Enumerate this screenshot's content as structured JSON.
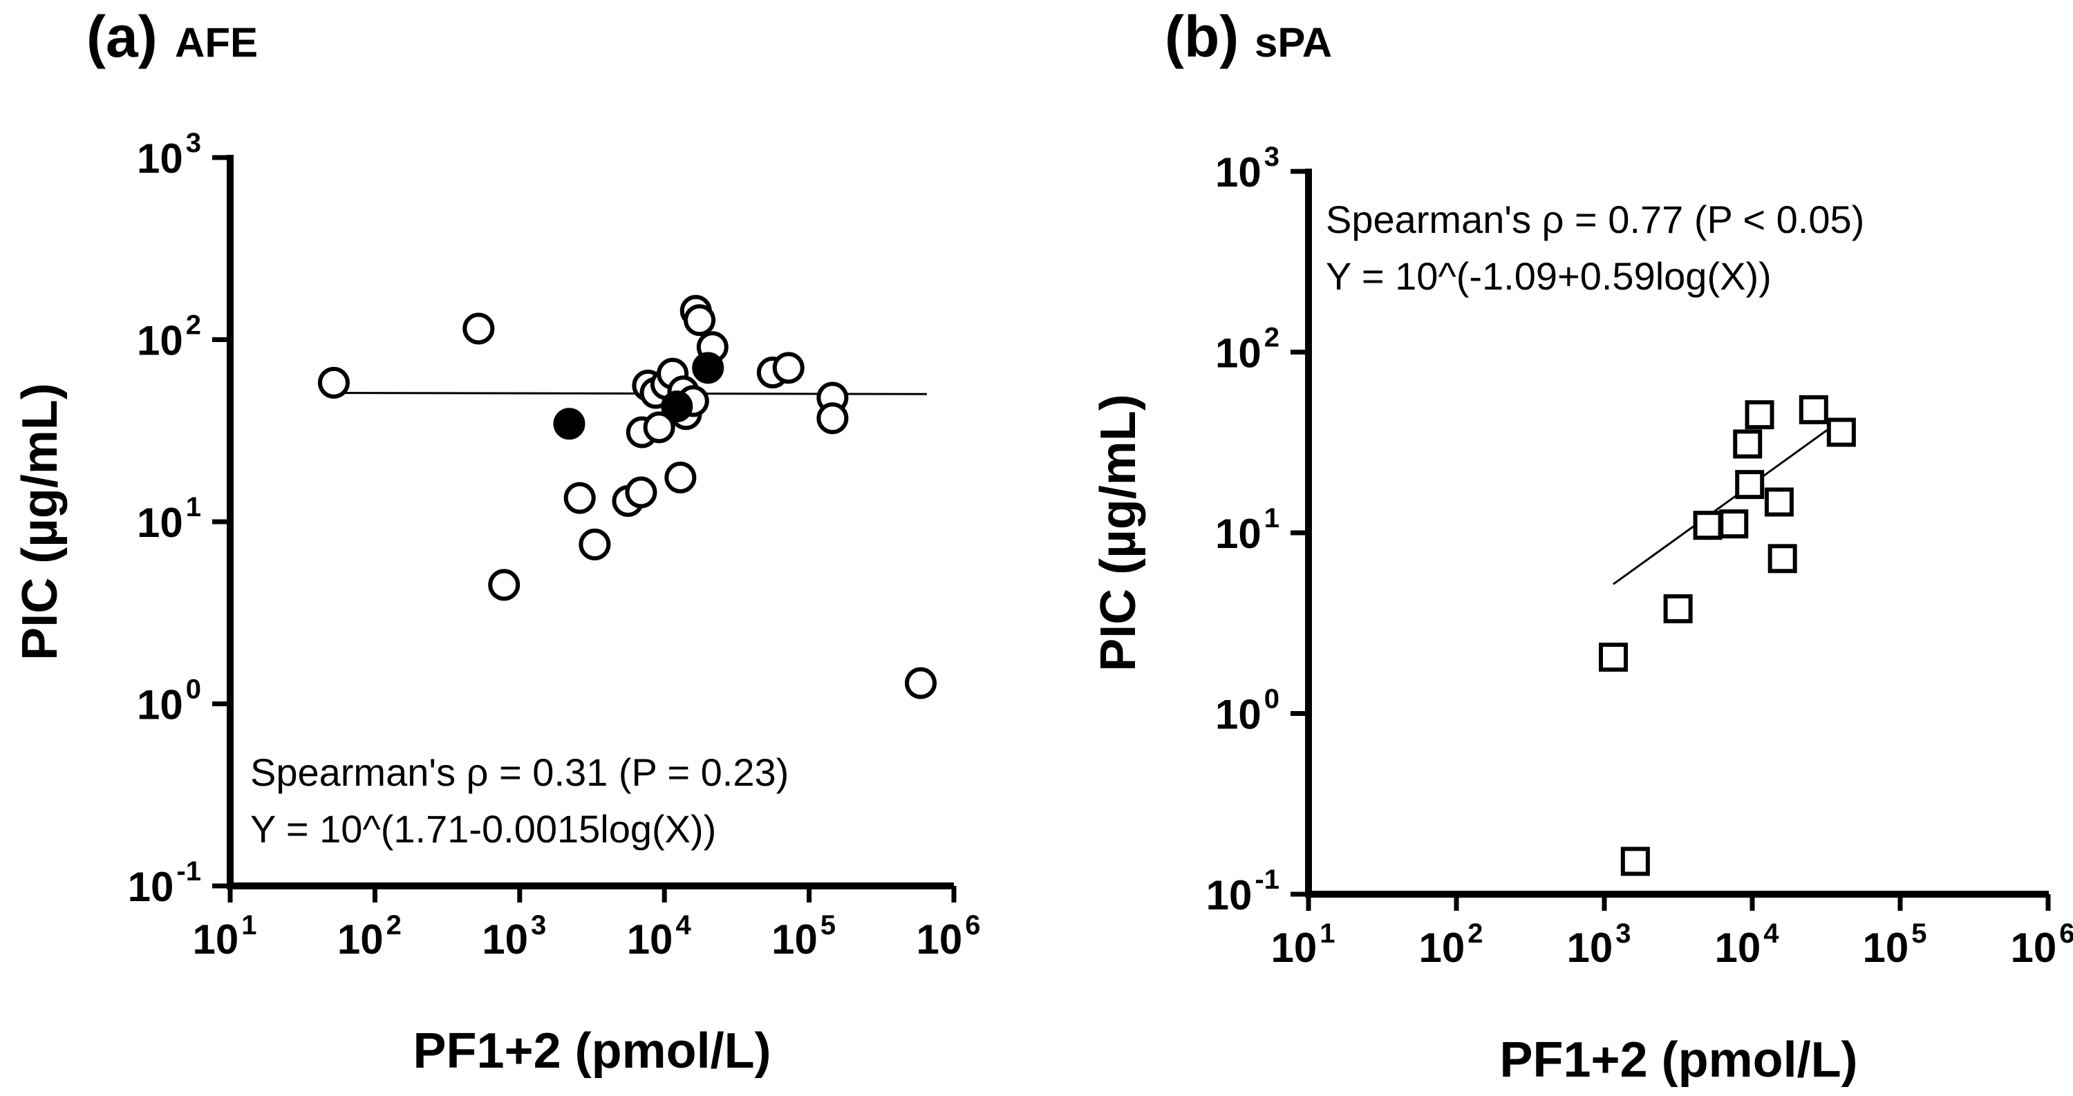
{
  "chart_data": [
    {
      "id": "a",
      "type": "scatter",
      "panel_letter": "(a)",
      "panel_name": "AFE",
      "xlabel": "PF1+2 (pmol/L)",
      "ylabel": "PIC (µg/mL)",
      "xscale": "log",
      "yscale": "log",
      "xlim": [
        10,
        1000000
      ],
      "ylim": [
        0.1,
        1000
      ],
      "x_ticks": [
        {
          "base": "10",
          "exp": "1",
          "value": 10
        },
        {
          "base": "10",
          "exp": "2",
          "value": 100
        },
        {
          "base": "10",
          "exp": "3",
          "value": 1000
        },
        {
          "base": "10",
          "exp": "4",
          "value": 10000
        },
        {
          "base": "10",
          "exp": "5",
          "value": 100000
        },
        {
          "base": "10",
          "exp": "6",
          "value": 1000000
        }
      ],
      "y_ticks": [
        {
          "base": "10",
          "exp": "-1",
          "value": 0.1
        },
        {
          "base": "10",
          "exp": "0",
          "value": 1
        },
        {
          "base": "10",
          "exp": "1",
          "value": 10
        },
        {
          "base": "10",
          "exp": "2",
          "value": 100
        },
        {
          "base": "10",
          "exp": "3",
          "value": 1000
        }
      ],
      "marker": "circle",
      "series": [
        {
          "name": "open",
          "fill": "none",
          "points": [
            [
              52,
              58
            ],
            [
              520,
              115
            ],
            [
              780,
              4.5
            ],
            [
              2600,
              13.5
            ],
            [
              3300,
              7.5
            ],
            [
              5600,
              13
            ],
            [
              6900,
              14.5
            ],
            [
              7000,
              31
            ],
            [
              7700,
              56
            ],
            [
              8700,
              51
            ],
            [
              9200,
              33
            ],
            [
              10300,
              57
            ],
            [
              11400,
              65
            ],
            [
              12900,
              17.5
            ],
            [
              13500,
              52
            ],
            [
              14100,
              39
            ],
            [
              15800,
              46
            ],
            [
              16500,
              144
            ],
            [
              17500,
              128
            ],
            [
              21500,
              91
            ],
            [
              56000,
              66
            ],
            [
              72000,
              70
            ],
            [
              145000,
              48
            ],
            [
              145000,
              37
            ],
            [
              590000,
              1.3
            ]
          ]
        },
        {
          "name": "filled",
          "fill": "#000000",
          "points": [
            [
              2200,
              34.5
            ],
            [
              12200,
              43
            ],
            [
              20000,
              70
            ]
          ]
        }
      ],
      "regression": {
        "intercept": 1.71,
        "slope": -0.0015,
        "x_range": [
          45,
          650000
        ]
      },
      "annotations": {
        "spearman": "Spearman's ρ = 0.31 (P = 0.23)",
        "equation": "Y = 10^(1.71-0.0015log(X))"
      }
    },
    {
      "id": "b",
      "type": "scatter",
      "panel_letter": "(b)",
      "panel_name": "sPA",
      "xlabel": "PF1+2 (pmol/L)",
      "ylabel": "PIC (µg/mL)",
      "xscale": "log",
      "yscale": "log",
      "xlim": [
        10,
        1000000
      ],
      "ylim": [
        0.1,
        1000
      ],
      "x_ticks": [
        {
          "base": "10",
          "exp": "1",
          "value": 10
        },
        {
          "base": "10",
          "exp": "2",
          "value": 100
        },
        {
          "base": "10",
          "exp": "3",
          "value": 1000
        },
        {
          "base": "10",
          "exp": "4",
          "value": 10000
        },
        {
          "base": "10",
          "exp": "5",
          "value": 100000
        },
        {
          "base": "10",
          "exp": "6",
          "value": 1000000
        }
      ],
      "y_ticks": [
        {
          "base": "10",
          "exp": "-1",
          "value": 0.1
        },
        {
          "base": "10",
          "exp": "0",
          "value": 1
        },
        {
          "base": "10",
          "exp": "1",
          "value": 10
        },
        {
          "base": "10",
          "exp": "2",
          "value": 100
        },
        {
          "base": "10",
          "exp": "3",
          "value": 1000
        }
      ],
      "marker": "square",
      "series": [
        {
          "name": "open",
          "fill": "none",
          "points": [
            [
              1150,
              2.05
            ],
            [
              1620,
              0.152
            ],
            [
              3150,
              3.8
            ],
            [
              5000,
              11
            ],
            [
              7500,
              11.2
            ],
            [
              9300,
              31
            ],
            [
              9600,
              18.5
            ],
            [
              11200,
              45
            ],
            [
              15200,
              14.8
            ],
            [
              16000,
              7.2
            ],
            [
              26000,
              48
            ],
            [
              40000,
              36
            ]
          ]
        }
      ],
      "regression": {
        "intercept": -1.09,
        "slope": 0.59,
        "x_range": [
          1150,
          40000
        ]
      },
      "annotations": {
        "spearman": "Spearman's ρ = 0.77 (P < 0.05)",
        "equation": "Y = 10^(-1.09+0.59log(X))"
      }
    }
  ]
}
